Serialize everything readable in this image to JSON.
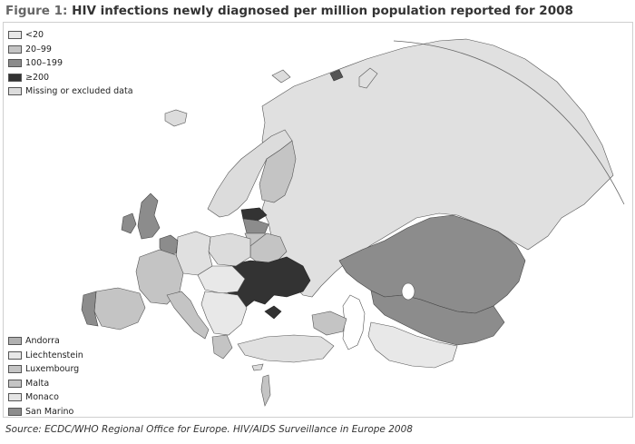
{
  "figure": {
    "label": "Figure 1:",
    "title": "HIV infections newly diagnosed per million population reported for 2008"
  },
  "legend": [
    {
      "label": "<20",
      "color": "#e8e8e8"
    },
    {
      "label": "20–99",
      "color": "#c4c4c4"
    },
    {
      "label": "100–199",
      "color": "#8c8c8c"
    },
    {
      "label": "≥200",
      "color": "#333333"
    },
    {
      "label": "Missing or excluded data",
      "color": "#dcdcdc"
    }
  ],
  "small_states": [
    {
      "label": "Andorra",
      "color": "#b0b0b0"
    },
    {
      "label": "Liechtenstein",
      "color": "#e8e8e8"
    },
    {
      "label": "Luxembourg",
      "color": "#c4c4c4"
    },
    {
      "label": "Malta",
      "color": "#c4c4c4"
    },
    {
      "label": "Monaco",
      "color": "#e4e4e4"
    },
    {
      "label": "San Marino",
      "color": "#8c8c8c"
    }
  ],
  "source": "Source: ECDC/WHO Regional Office for Europe. HIV/AIDS Surveillance in Europe 2008"
}
